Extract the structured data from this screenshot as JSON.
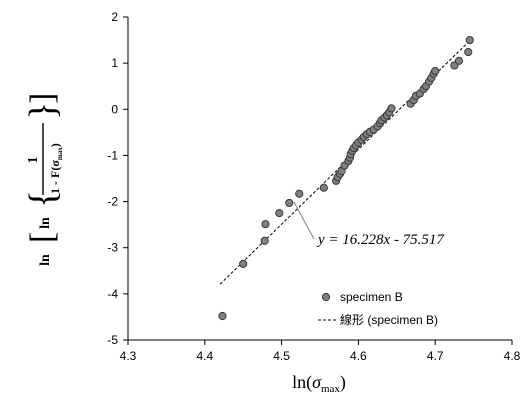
{
  "chart_data": {
    "type": "scatter",
    "xlim": [
      4.3,
      4.8
    ],
    "ylim": [
      -5,
      2
    ],
    "x_ticks": [
      "4.3",
      "4.4",
      "4.5",
      "4.6",
      "4.7",
      "4.8"
    ],
    "y_ticks": [
      "-5",
      "-4",
      "-3",
      "-2",
      "-1",
      "0",
      "1",
      "2"
    ],
    "xlabel": {
      "prefix": "ln(",
      "sigma": "σ",
      "sub": "max",
      "suffix": ")"
    },
    "ylabel": {
      "ln_outer": "ln",
      "ln_inner": "ln",
      "numerator": "1",
      "denominator": "1 - F(σ",
      "sub": "max",
      "close": ")"
    },
    "series": [
      {
        "name": "specimen B",
        "marker_color": "#808080",
        "points": [
          [
            4.423,
            -4.48
          ],
          [
            4.45,
            -3.35
          ],
          [
            4.478,
            -2.85
          ],
          [
            4.479,
            -2.49
          ],
          [
            4.497,
            -2.25
          ],
          [
            4.51,
            -2.03
          ],
          [
            4.523,
            -1.83
          ],
          [
            4.555,
            -1.7
          ],
          [
            4.571,
            -1.55
          ],
          [
            4.573,
            -1.47
          ],
          [
            4.576,
            -1.4
          ],
          [
            4.578,
            -1.34
          ],
          [
            4.582,
            -1.22
          ],
          [
            4.587,
            -1.12
          ],
          [
            4.589,
            -1.05
          ],
          [
            4.59,
            -0.97
          ],
          [
            4.592,
            -0.9
          ],
          [
            4.594,
            -0.84
          ],
          [
            4.597,
            -0.78
          ],
          [
            4.6,
            -0.72
          ],
          [
            4.604,
            -0.66
          ],
          [
            4.607,
            -0.6
          ],
          [
            4.611,
            -0.54
          ],
          [
            4.615,
            -0.49
          ],
          [
            4.62,
            -0.44
          ],
          [
            4.625,
            -0.37
          ],
          [
            4.628,
            -0.3
          ],
          [
            4.63,
            -0.24
          ],
          [
            4.634,
            -0.18
          ],
          [
            4.637,
            -0.13
          ],
          [
            4.64,
            -0.07
          ],
          [
            4.643,
            0.02
          ],
          [
            4.668,
            0.12
          ],
          [
            4.672,
            0.2
          ],
          [
            4.675,
            0.29
          ],
          [
            4.68,
            0.34
          ],
          [
            4.685,
            0.44
          ],
          [
            4.688,
            0.5
          ],
          [
            4.692,
            0.6
          ],
          [
            4.695,
            0.68
          ],
          [
            4.698,
            0.77
          ],
          [
            4.7,
            0.83
          ],
          [
            4.725,
            0.95
          ],
          [
            4.731,
            1.05
          ],
          [
            4.743,
            1.24
          ],
          [
            4.745,
            1.5
          ]
        ]
      }
    ],
    "trendline": {
      "name": "線形 (specimen B)",
      "slope": 16.228,
      "intercept": -75.517,
      "x_range": [
        4.42,
        4.745
      ],
      "equation": "y = 16.228x - 75.517"
    },
    "legend_position": "bottom-right",
    "grid": false
  }
}
